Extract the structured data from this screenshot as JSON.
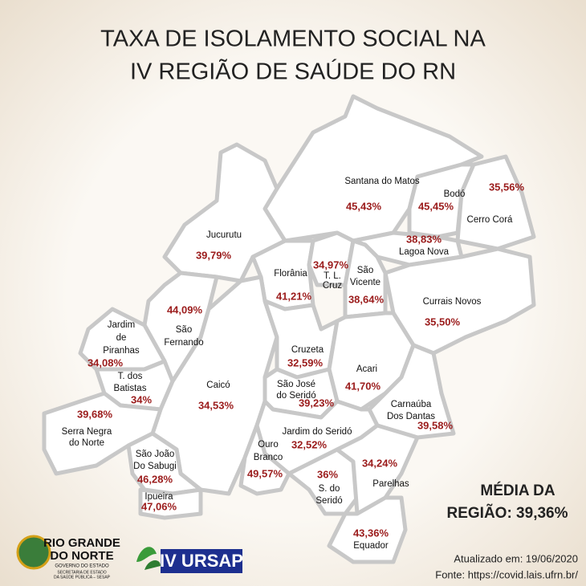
{
  "header": {
    "title_lines": [
      "TAXA DE ISOLAMENTO SOCIAL NA",
      "IV REGIÃO DE SAÚDE DO RN"
    ]
  },
  "regions": [
    {
      "name": [
        "Santana do Matos"
      ],
      "value": "45,43%"
    },
    {
      "name": [
        "Bodó"
      ],
      "value": "45,45%"
    },
    {
      "name": [
        "Cerro Corá"
      ],
      "value": "35,56%"
    },
    {
      "name": [
        "Lagoa Nova"
      ],
      "value": "38,83%"
    },
    {
      "name": [
        "Jucurutu"
      ],
      "value": "39,79%"
    },
    {
      "name": [
        "Florânia"
      ],
      "value": "41,21%"
    },
    {
      "name": [
        "T. L.",
        "Cruz"
      ],
      "value": "34,97%"
    },
    {
      "name": [
        "São",
        "Vicente"
      ],
      "value": "38,64%"
    },
    {
      "name": [
        "Currais Novos"
      ],
      "value": "35,50%"
    },
    {
      "name": [
        "São",
        "Fernando"
      ],
      "value": "44,09%"
    },
    {
      "name": [
        "Jardim",
        "de",
        "Piranhas"
      ],
      "value": "34,08%"
    },
    {
      "name": [
        "T. dos",
        "Batistas"
      ],
      "value": "34%"
    },
    {
      "name": [
        "Caicó"
      ],
      "value": "34,53%"
    },
    {
      "name": [
        "Cruzeta"
      ],
      "value": "32,59%"
    },
    {
      "name": [
        "São José",
        "do Seridó"
      ],
      "value": "39,23%"
    },
    {
      "name": [
        "Acari"
      ],
      "value": "41,70%"
    },
    {
      "name": [
        "Carnaúba",
        "Dos Dantas"
      ],
      "value": "39,58%"
    },
    {
      "name": [
        "Serra Negra",
        "do Norte"
      ],
      "value": "39,68%"
    },
    {
      "name": [
        "Jardim do Seridó"
      ],
      "value": "32,52%"
    },
    {
      "name": [
        "Ouro",
        "Branco"
      ],
      "value": "49,57%"
    },
    {
      "name": [
        "São João",
        "Do Sabugi"
      ],
      "value": "46,28%"
    },
    {
      "name": [
        "S. do",
        "Seridó"
      ],
      "value": "36%"
    },
    {
      "name": [
        "Parelhas"
      ],
      "value": "34,24%"
    },
    {
      "name": [
        "Ipueira"
      ],
      "value": "47,06%"
    },
    {
      "name": [
        "Equador"
      ],
      "value": "43,36%"
    }
  ],
  "average": {
    "lines": [
      "MÉDIA DA",
      "REGIÃO: 39,36%"
    ]
  },
  "footer": {
    "updated": "Atualizado em: 19/06/2020",
    "source": "Fonte: https://covid.lais.ufrn.br/"
  },
  "logos": {
    "state": [
      "RIO GRANDE",
      "DO NORTE"
    ],
    "government": "GOVERNO DO ESTADO",
    "secretariat": [
      "SECRETARIA DE ESTADO",
      "DA SAÚDE PÚBLICA – SESAP"
    ],
    "ursap": "IV URSAP"
  }
}
